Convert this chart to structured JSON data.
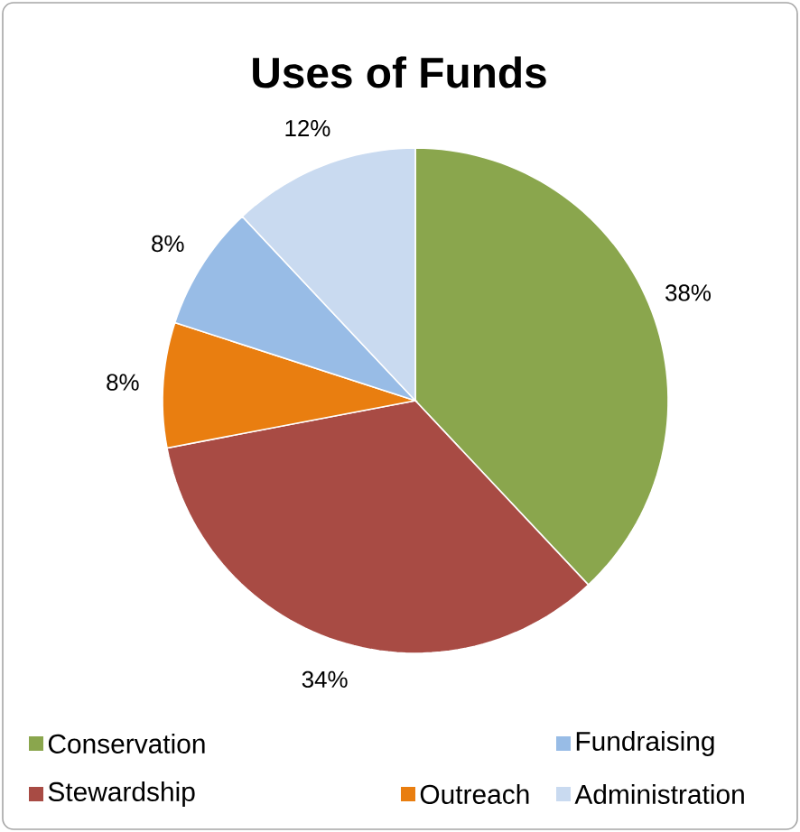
{
  "chart_data": {
    "type": "pie",
    "title": "Uses of Funds",
    "categories": [
      "Conservation",
      "Stewardship",
      "Outreach",
      "Fundraising",
      "Administration"
    ],
    "values": [
      38,
      34,
      8,
      8,
      12
    ],
    "value_labels": [
      "38%",
      "34%",
      "8%",
      "8%",
      "12%"
    ],
    "colors": [
      "#8aa64d",
      "#a84b44",
      "#e97e10",
      "#98bce6",
      "#c9daf0"
    ],
    "legend": "bottom"
  }
}
